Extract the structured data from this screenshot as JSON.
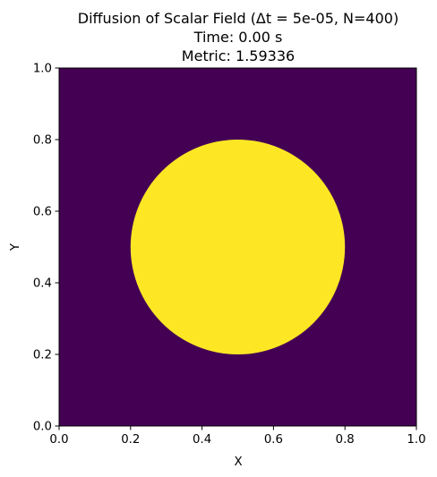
{
  "chart_data": {
    "type": "heatmap",
    "title_lines": [
      "Diffusion of Scalar Field (Δt = 5e-05, N=400)",
      "Time: 0.00 s",
      "Metric: 1.59336"
    ],
    "xlabel": "X",
    "ylabel": "Y",
    "xlim": [
      0,
      1
    ],
    "ylim": [
      0,
      1
    ],
    "x_ticks": [
      "0.0",
      "0.2",
      "0.4",
      "0.6",
      "0.8",
      "1.0"
    ],
    "y_ticks": [
      "0.0",
      "0.2",
      "0.4",
      "0.6",
      "0.8",
      "1.0"
    ],
    "colormap": "viridis",
    "grid": false,
    "field": {
      "background_value": 0,
      "background_color": "#440154",
      "region_shape": "circle",
      "region_center": [
        0.5,
        0.5
      ],
      "region_radius": 0.3,
      "region_value": 1,
      "region_color": "#fde725"
    }
  }
}
